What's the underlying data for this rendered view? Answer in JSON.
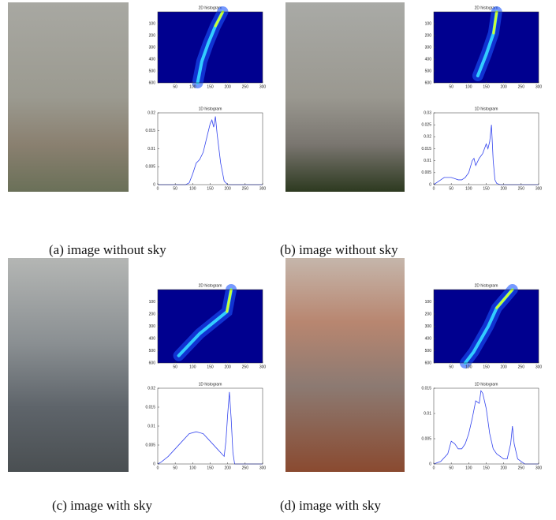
{
  "chart_data": [
    {
      "type": "heatmap",
      "title": "2D histogram",
      "xlim": [
        0,
        300
      ],
      "ylim": [
        0,
        600
      ],
      "xticks": [
        50,
        100,
        150,
        200,
        250,
        300
      ],
      "yticks": [
        100,
        200,
        300,
        400,
        500,
        600
      ]
    },
    {
      "type": "line",
      "title": "1D histogram",
      "x": [
        0,
        50,
        80,
        90,
        100,
        110,
        120,
        130,
        140,
        150,
        155,
        160,
        165,
        170,
        180,
        190,
        200,
        250,
        300
      ],
      "values": [
        0,
        0,
        0,
        0.0005,
        0.003,
        0.006,
        0.007,
        0.009,
        0.013,
        0.017,
        0.018,
        0.016,
        0.019,
        0.014,
        0.006,
        0.001,
        0,
        0,
        0
      ],
      "xlim": [
        0,
        300
      ],
      "ylim": [
        0,
        0.02
      ],
      "xticks": [
        0,
        50,
        100,
        150,
        200,
        250,
        300
      ],
      "yticks": [
        0,
        0.005,
        0.01,
        0.015,
        0.02
      ],
      "color": "#3344ee"
    },
    {
      "type": "heatmap",
      "title": "2D histogram",
      "xlim": [
        0,
        300
      ],
      "ylim": [
        0,
        600
      ],
      "xticks": [
        50,
        100,
        150,
        200,
        250,
        300
      ],
      "yticks": [
        100,
        200,
        300,
        400,
        500,
        600
      ]
    },
    {
      "type": "line",
      "title": "1D histogram",
      "x": [
        0,
        10,
        20,
        30,
        40,
        50,
        60,
        70,
        80,
        90,
        100,
        110,
        115,
        120,
        130,
        140,
        150,
        155,
        160,
        165,
        170,
        175,
        180,
        190,
        250,
        300
      ],
      "values": [
        0,
        0.001,
        0.002,
        0.003,
        0.003,
        0.003,
        0.0025,
        0.002,
        0.002,
        0.003,
        0.005,
        0.01,
        0.011,
        0.008,
        0.011,
        0.013,
        0.017,
        0.015,
        0.018,
        0.025,
        0.01,
        0.002,
        0.0005,
        0,
        0,
        0
      ],
      "xlim": [
        0,
        300
      ],
      "ylim": [
        0,
        0.03
      ],
      "xticks": [
        0,
        50,
        100,
        150,
        200,
        250,
        300
      ],
      "yticks": [
        0,
        0.005,
        0.01,
        0.015,
        0.02,
        0.025,
        0.03
      ],
      "color": "#3344ee"
    },
    {
      "type": "heatmap",
      "title": "2D histogram",
      "xlim": [
        0,
        300
      ],
      "ylim": [
        0,
        600
      ],
      "xticks": [
        50,
        100,
        150,
        200,
        250,
        300
      ],
      "yticks": [
        100,
        200,
        300,
        400,
        500,
        600
      ]
    },
    {
      "type": "line",
      "title": "1D histogram",
      "x": [
        0,
        10,
        30,
        50,
        70,
        90,
        110,
        130,
        150,
        170,
        190,
        195,
        200,
        205,
        210,
        215,
        220,
        250,
        300
      ],
      "values": [
        0,
        0.0005,
        0.002,
        0.004,
        0.006,
        0.008,
        0.0085,
        0.008,
        0.006,
        0.004,
        0.002,
        0.006,
        0.013,
        0.019,
        0.012,
        0.003,
        0,
        0,
        0
      ],
      "xlim": [
        0,
        300
      ],
      "ylim": [
        0,
        0.02
      ],
      "xticks": [
        0,
        50,
        100,
        150,
        200,
        250,
        300
      ],
      "yticks": [
        0,
        0.005,
        0.01,
        0.015,
        0.02
      ],
      "color": "#3344ee"
    },
    {
      "type": "heatmap",
      "title": "2D histogram",
      "xlim": [
        0,
        300
      ],
      "ylim": [
        0,
        600
      ],
      "xticks": [
        50,
        100,
        150,
        200,
        250,
        300
      ],
      "yticks": [
        100,
        200,
        300,
        400,
        500,
        600
      ]
    },
    {
      "type": "line",
      "title": "1D histogram",
      "x": [
        0,
        20,
        40,
        50,
        60,
        70,
        80,
        90,
        100,
        110,
        120,
        130,
        135,
        140,
        150,
        160,
        170,
        180,
        200,
        210,
        220,
        225,
        230,
        240,
        250,
        260,
        300
      ],
      "values": [
        0,
        0.0005,
        0.002,
        0.0045,
        0.004,
        0.003,
        0.003,
        0.004,
        0.006,
        0.009,
        0.0125,
        0.012,
        0.0145,
        0.014,
        0.011,
        0.006,
        0.003,
        0.002,
        0.001,
        0.001,
        0.004,
        0.0075,
        0.004,
        0.001,
        0.0005,
        0,
        0
      ],
      "xlim": [
        0,
        300
      ],
      "ylim": [
        0,
        0.015
      ],
      "xticks": [
        0,
        50,
        100,
        150,
        200,
        250,
        300
      ],
      "yticks": [
        0,
        0.005,
        0.01,
        0.015
      ],
      "color": "#3344ee"
    }
  ],
  "captions": [
    "(a) image without sky",
    "(b) image without sky",
    "(c)  image with sky",
    "(d) image with sky"
  ]
}
